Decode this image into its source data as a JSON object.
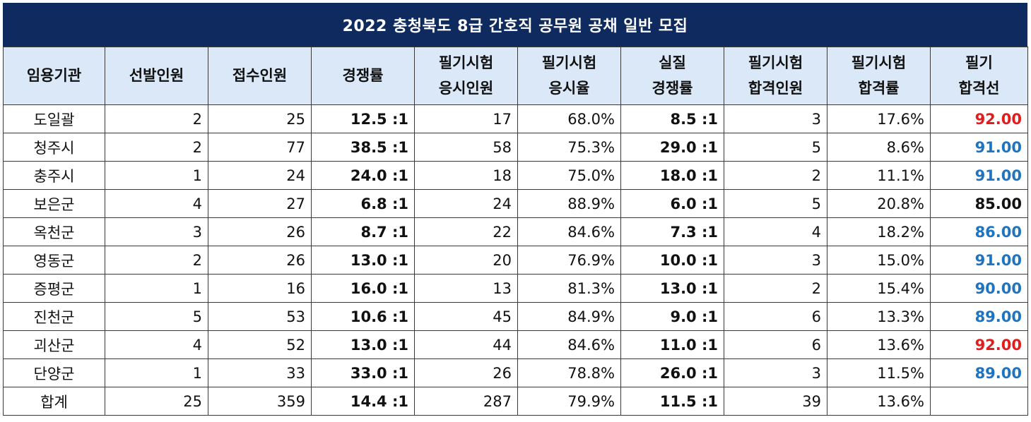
{
  "title": "2022 충청북도 8급 간호직 공무원 공채 일반 모집",
  "headers": [
    [
      "임용기관"
    ],
    [
      "선발인원"
    ],
    [
      "접수인원"
    ],
    [
      "경쟁률"
    ],
    [
      "필기시험",
      "응시인원"
    ],
    [
      "필기시험",
      "응시율"
    ],
    [
      "실질",
      "경쟁률"
    ],
    [
      "필기시험",
      "합격인원"
    ],
    [
      "필기시험",
      "합격률"
    ],
    [
      "필기",
      "합격선"
    ]
  ],
  "rows": [
    {
      "org": "도일괄",
      "sel": "2",
      "app": "25",
      "ratio": "12.5 :1",
      "take": "17",
      "take_rate": "68.0%",
      "real": "8.5 :1",
      "pass": "3",
      "pass_rate": "17.6%",
      "cut": "92.00",
      "cut_color": "#e31b1b"
    },
    {
      "org": "청주시",
      "sel": "2",
      "app": "77",
      "ratio": "38.5 :1",
      "take": "58",
      "take_rate": "75.3%",
      "real": "29.0 :1",
      "pass": "5",
      "pass_rate": "8.6%",
      "cut": "91.00",
      "cut_color": "#1f74c2"
    },
    {
      "org": "충주시",
      "sel": "1",
      "app": "24",
      "ratio": "24.0 :1",
      "take": "18",
      "take_rate": "75.0%",
      "real": "18.0 :1",
      "pass": "2",
      "pass_rate": "11.1%",
      "cut": "91.00",
      "cut_color": "#1f74c2"
    },
    {
      "org": "보은군",
      "sel": "4",
      "app": "27",
      "ratio": "6.8 :1",
      "take": "24",
      "take_rate": "88.9%",
      "real": "6.0 :1",
      "pass": "5",
      "pass_rate": "20.8%",
      "cut": "85.00",
      "cut_color": "#111111"
    },
    {
      "org": "옥천군",
      "sel": "3",
      "app": "26",
      "ratio": "8.7 :1",
      "take": "22",
      "take_rate": "84.6%",
      "real": "7.3 :1",
      "pass": "4",
      "pass_rate": "18.2%",
      "cut": "86.00",
      "cut_color": "#1f74c2"
    },
    {
      "org": "영동군",
      "sel": "2",
      "app": "26",
      "ratio": "13.0 :1",
      "take": "20",
      "take_rate": "76.9%",
      "real": "10.0 :1",
      "pass": "3",
      "pass_rate": "15.0%",
      "cut": "91.00",
      "cut_color": "#1f74c2"
    },
    {
      "org": "증평군",
      "sel": "1",
      "app": "16",
      "ratio": "16.0 :1",
      "take": "13",
      "take_rate": "81.3%",
      "real": "13.0 :1",
      "pass": "2",
      "pass_rate": "15.4%",
      "cut": "90.00",
      "cut_color": "#1f74c2"
    },
    {
      "org": "진천군",
      "sel": "5",
      "app": "53",
      "ratio": "10.6 :1",
      "take": "45",
      "take_rate": "84.9%",
      "real": "9.0 :1",
      "pass": "6",
      "pass_rate": "13.3%",
      "cut": "89.00",
      "cut_color": "#1f74c2"
    },
    {
      "org": "괴산군",
      "sel": "4",
      "app": "52",
      "ratio": "13.0 :1",
      "take": "44",
      "take_rate": "84.6%",
      "real": "11.0 :1",
      "pass": "6",
      "pass_rate": "13.6%",
      "cut": "92.00",
      "cut_color": "#e31b1b"
    },
    {
      "org": "단양군",
      "sel": "1",
      "app": "33",
      "ratio": "33.0 :1",
      "take": "26",
      "take_rate": "78.8%",
      "real": "26.0 :1",
      "pass": "3",
      "pass_rate": "11.5%",
      "cut": "89.00",
      "cut_color": "#1f74c2"
    },
    {
      "org": "합계",
      "sel": "25",
      "app": "359",
      "ratio": "14.4 :1",
      "take": "287",
      "take_rate": "79.9%",
      "real": "11.5 :1",
      "pass": "39",
      "pass_rate": "13.6%",
      "cut": "",
      "cut_color": "#111111"
    }
  ],
  "colors": {
    "title_bg": "#0f2a5e",
    "header_bg": "#dae8f7",
    "cut_red": "#e31b1b",
    "cut_blue": "#1f74c2"
  }
}
